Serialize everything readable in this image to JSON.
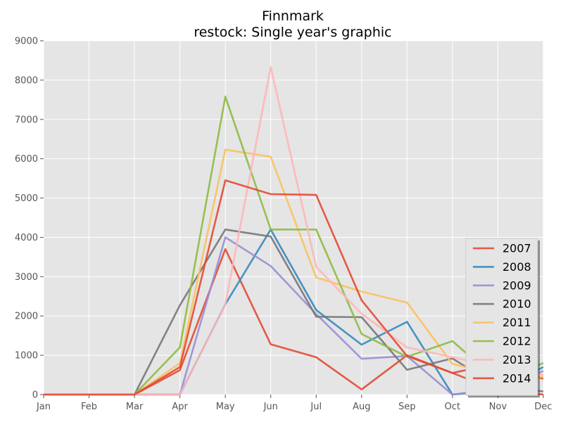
{
  "chart_data": {
    "type": "line",
    "title": "Finnmark",
    "subtitle": "restock: Single year's graphic",
    "xlabel": "",
    "ylabel": "",
    "categories": [
      "Jan",
      "Feb",
      "Mar",
      "Apr",
      "May",
      "Jun",
      "Jul",
      "Aug",
      "Sep",
      "Oct",
      "Nov",
      "Dec"
    ],
    "ylim": [
      0,
      9000
    ],
    "yticks": [
      "0",
      "1000",
      "2000",
      "3000",
      "4000",
      "5000",
      "6000",
      "7000",
      "8000",
      "9000"
    ],
    "grid": true,
    "legend_position": "lower-right",
    "colors": {
      "plot_background": "#e5e5e5",
      "grid": "#ffffff"
    },
    "series": [
      {
        "name": "2007",
        "color": "#e24a33",
        "values": [
          0,
          0,
          0,
          620,
          3700,
          1280,
          950,
          130,
          1000,
          550,
          800,
          400
        ]
      },
      {
        "name": "2008",
        "color": "#348abd",
        "values": [
          0,
          0,
          0,
          0,
          2300,
          4200,
          2150,
          1270,
          1850,
          0,
          100,
          700
        ]
      },
      {
        "name": "2009",
        "color": "#988ed5",
        "values": [
          0,
          0,
          0,
          0,
          4000,
          3270,
          2050,
          910,
          980,
          0,
          150,
          600
        ]
      },
      {
        "name": "2010",
        "color": "#777777",
        "values": [
          0,
          0,
          0,
          2270,
          4200,
          4020,
          1980,
          1970,
          630,
          920,
          200,
          80
        ]
      },
      {
        "name": "2011",
        "color": "#fbc15e",
        "values": [
          0,
          0,
          0,
          800,
          6230,
          6050,
          2980,
          2620,
          2340,
          780,
          500,
          450
        ]
      },
      {
        "name": "2012",
        "color": "#8eba42",
        "values": [
          0,
          0,
          0,
          1200,
          7580,
          4200,
          4200,
          1540,
          960,
          1360,
          350,
          800
        ]
      },
      {
        "name": "2013",
        "color": "#ffb5b8",
        "values": [
          0,
          0,
          0,
          0,
          2300,
          8330,
          3250,
          2060,
          1200,
          950,
          700,
          500
        ]
      },
      {
        "name": "2014",
        "color": "#e24a33",
        "values": [
          0,
          0,
          0,
          700,
          5450,
          5100,
          5080,
          2400,
          980,
          550,
          100,
          0
        ]
      }
    ]
  }
}
